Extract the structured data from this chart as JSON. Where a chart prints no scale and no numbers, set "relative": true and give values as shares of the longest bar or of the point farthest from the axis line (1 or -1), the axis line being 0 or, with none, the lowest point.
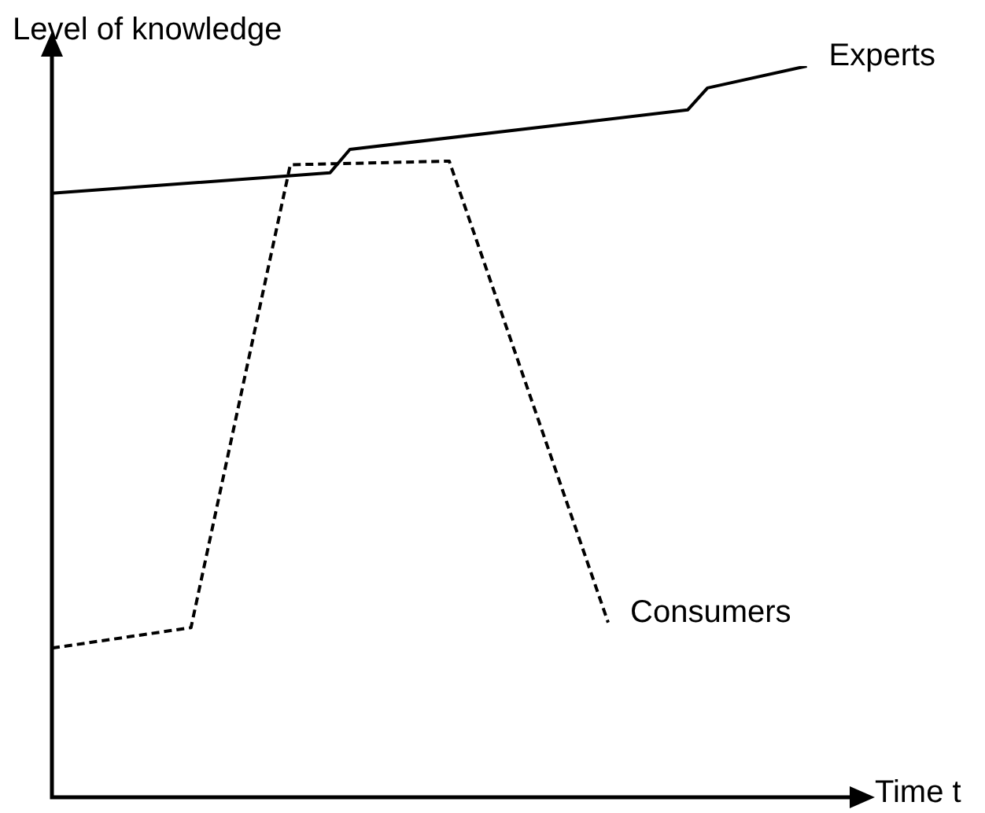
{
  "chart_data": {
    "type": "line",
    "relative": true,
    "xlabel": "Time t",
    "ylabel": "Level of knowledge",
    "legend": false,
    "marker": "none",
    "categories": [
      null,
      null,
      null,
      null,
      null,
      null,
      null,
      null,
      null,
      null,
      null,
      null,
      null,
      null,
      null,
      null,
      null,
      null,
      null,
      null,
      null,
      null,
      null,
      null,
      null,
      null,
      null,
      null,
      null,
      null,
      null,
      null,
      null,
      null,
      null,
      null,
      null,
      null,
      null,
      null,
      null
    ],
    "series": [
      {
        "name": "Experts",
        "color": "#000000",
        "line_style": "solid",
        "values": [
          0.826,
          null,
          null,
          null,
          null,
          null,
          null,
          null,
          null,
          null,
          null,
          null,
          null,
          null,
          0.854,
          0.886,
          null,
          null,
          null,
          null,
          null,
          null,
          null,
          null,
          null,
          null,
          null,
          null,
          null,
          null,
          null,
          null,
          0.94,
          0.97,
          null,
          null,
          null,
          null,
          1,
          null,
          null
        ]
      },
      {
        "name": "Consumers",
        "color": "#000000",
        "line_style": "dashed",
        "values": [
          0.204,
          null,
          null,
          null,
          null,
          null,
          null,
          0.232,
          null,
          null,
          null,
          null,
          0.865,
          null,
          null,
          null,
          null,
          null,
          null,
          null,
          0.87,
          null,
          null,
          null,
          null,
          null,
          null,
          null,
          0.239,
          null,
          null,
          null,
          null,
          null,
          null,
          null,
          null,
          null,
          null,
          null,
          null
        ]
      }
    ]
  }
}
